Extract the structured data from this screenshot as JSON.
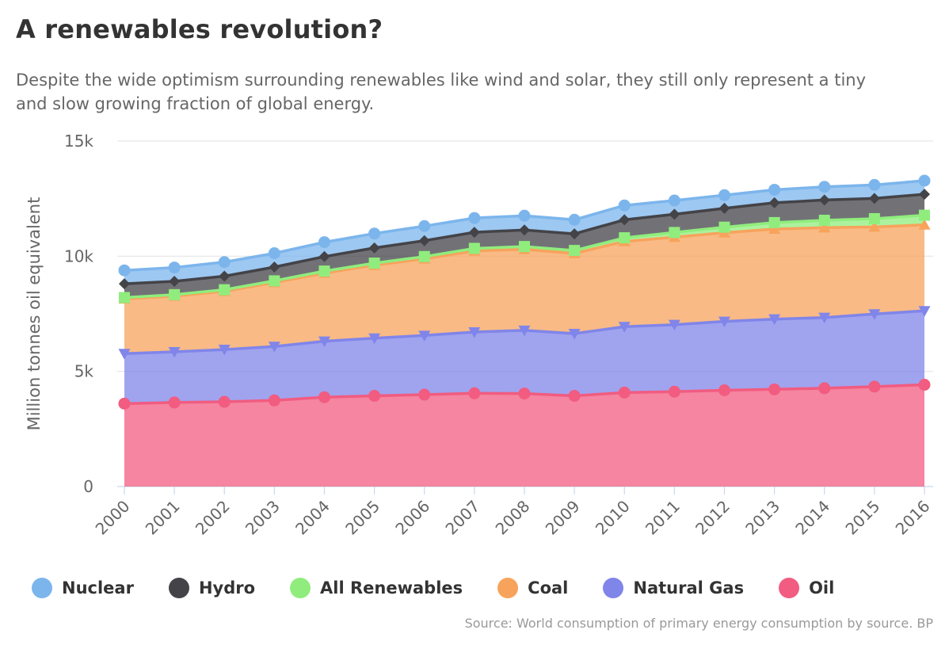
{
  "title": "A renewables revolution?",
  "subtitle": "Despite the wide optimism surrounding renewables like wind and solar, they still only represent a tiny and slow growing fraction of global energy.",
  "source": "Source: World consumption of primary energy consumption by source. BP",
  "chart_data": {
    "type": "area",
    "stacking": "normal",
    "title": "A renewables revolution?",
    "subtitle": "Despite the wide optimism surrounding renewables like wind and solar, they still only represent a tiny and slow growing fraction of global energy.",
    "xlabel": "",
    "ylabel": "Million tonnes oil equivalent",
    "ylim": [
      0,
      15000
    ],
    "yticks": [
      0,
      5000,
      10000,
      15000
    ],
    "ytick_labels": [
      "0",
      "5k",
      "10k",
      "15k"
    ],
    "categories": [
      "2000",
      "2001",
      "2002",
      "2003",
      "2004",
      "2005",
      "2006",
      "2007",
      "2008",
      "2009",
      "2010",
      "2011",
      "2012",
      "2013",
      "2014",
      "2015",
      "2016"
    ],
    "grid": "horizontal",
    "legend_position": "bottom-left",
    "series": [
      {
        "name": "Nuclear",
        "color": "#7cb5ec",
        "marker": "circle",
        "values": [
          580,
          600,
          610,
          600,
          625,
          625,
          635,
          620,
          620,
          615,
          625,
          600,
          570,
          565,
          575,
          585,
          590
        ]
      },
      {
        "name": "Hydro",
        "color": "#434348",
        "marker": "diamond",
        "values": [
          600,
          580,
          590,
          600,
          630,
          660,
          690,
          700,
          720,
          720,
          780,
          790,
          820,
          860,
          880,
          880,
          910
        ]
      },
      {
        "name": "All Renewables",
        "color": "#90ed7d",
        "marker": "square",
        "values": [
          55,
          60,
          65,
          70,
          85,
          90,
          95,
          110,
          120,
          130,
          160,
          200,
          240,
          280,
          320,
          360,
          420
        ]
      },
      {
        "name": "Coal",
        "color": "#f7a35c",
        "marker": "triangle",
        "values": [
          2380,
          2420,
          2530,
          2780,
          2960,
          3170,
          3330,
          3520,
          3520,
          3480,
          3700,
          3800,
          3850,
          3910,
          3900,
          3780,
          3730
        ]
      },
      {
        "name": "Natural Gas",
        "color": "#8085e9",
        "marker": "triangle-down",
        "values": [
          2170,
          2200,
          2270,
          2340,
          2430,
          2500,
          2570,
          2660,
          2740,
          2700,
          2860,
          2910,
          2990,
          3050,
          3070,
          3150,
          3210
        ]
      },
      {
        "name": "Oil",
        "color": "#f15c80",
        "marker": "circle",
        "values": [
          3600,
          3650,
          3680,
          3740,
          3880,
          3940,
          3990,
          4050,
          4040,
          3940,
          4080,
          4120,
          4180,
          4220,
          4270,
          4340,
          4420
        ]
      }
    ]
  }
}
